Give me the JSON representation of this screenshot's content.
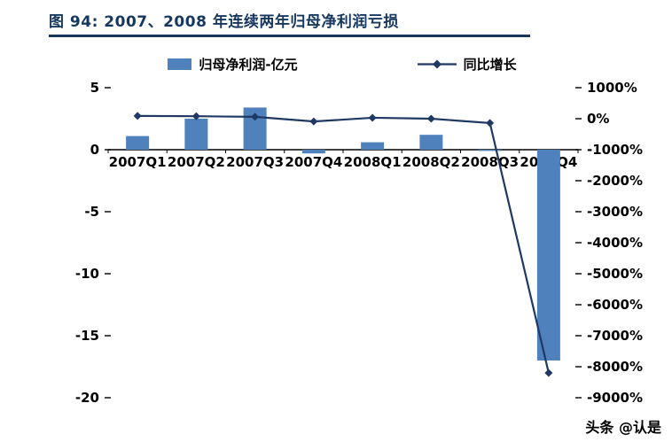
{
  "header": {
    "title": "图 94: 2007、2008 年连续两年归母净利润亏损"
  },
  "watermark": "头条 @认是",
  "colors": {
    "bar": "#4F81BD",
    "line": "#1F3864",
    "title": "#17375E",
    "rule": "#17375E",
    "axis_text": "#000000"
  },
  "chart_data": {
    "type": "combo",
    "title": "图 94: 2007、2008 年连续两年归母净利润亏损",
    "categories": [
      "2007Q1",
      "2007Q2",
      "2007Q3",
      "2007Q4",
      "2008Q1",
      "2008Q2",
      "2008Q3",
      "2008Q4"
    ],
    "series": [
      {
        "name": "归母净利润-亿元",
        "type": "bar",
        "axis": "left",
        "values": [
          1.1,
          2.5,
          3.4,
          -0.3,
          0.6,
          1.2,
          -0.1,
          -17
        ]
      },
      {
        "name": "同比增长",
        "type": "line",
        "axis": "right",
        "unit": "%",
        "values": [
          90,
          80,
          60,
          -90,
          30,
          0,
          -140,
          -8200
        ]
      }
    ],
    "left_axis": {
      "min": -20,
      "max": 5,
      "ticks": [
        5,
        0,
        -5,
        -10,
        -15,
        -20
      ]
    },
    "right_axis": {
      "min": -9000,
      "max": 1000,
      "tick_labels": [
        "1000%",
        "0%",
        "-1000%",
        "-2000%",
        "-3000%",
        "-4000%",
        "-5000%",
        "-6000%",
        "-7000%",
        "-8000%",
        "-9000%"
      ]
    },
    "grid": false,
    "legend_position": "top"
  }
}
